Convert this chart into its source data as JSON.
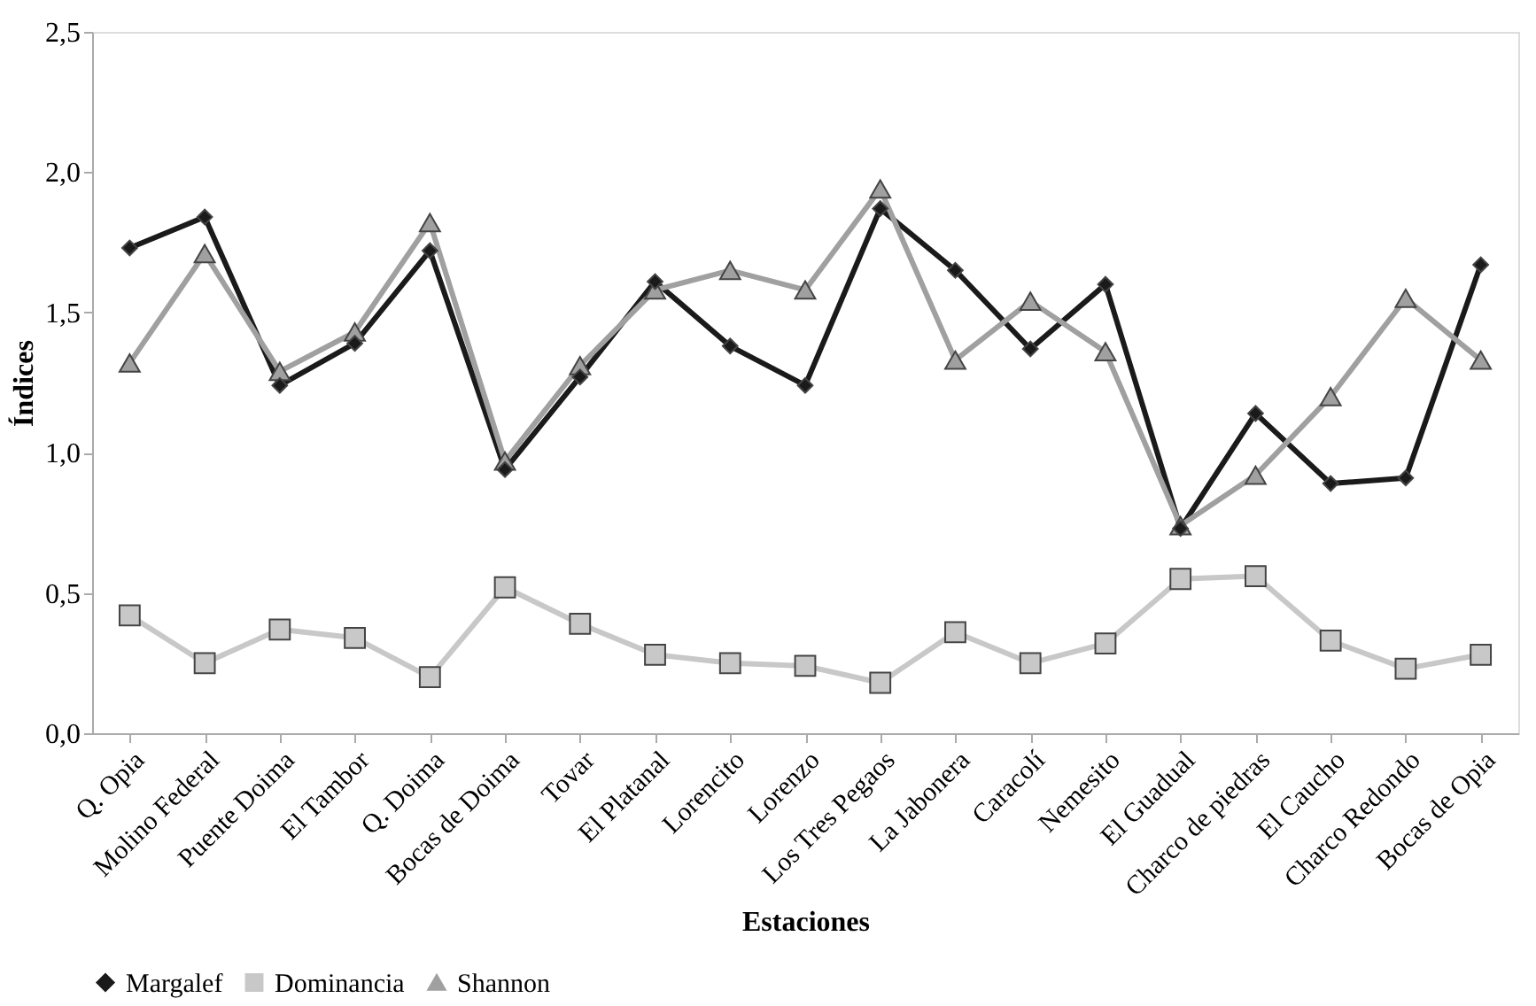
{
  "chart_data": {
    "type": "line",
    "xlabel": "Estaciones",
    "ylabel": "Índices",
    "categories": [
      "Q. Opia",
      "Molino Federal",
      "Puente Doima",
      "El Tambor",
      "Q. Doima",
      "Bocas de Doima",
      "Tovar",
      "El Platanal",
      "Lorencito",
      "Lorenzo",
      "Los Tres Pegaos",
      "La Jabonera",
      "Caracolí",
      "Nemesito",
      "El Guadual",
      "Charco de piedras",
      "El Caucho",
      "Charco Redondo",
      "Bocas de Opia"
    ],
    "series": [
      {
        "name": "Margalef",
        "color": "#1a1a1a",
        "marker": "diamond",
        "values": [
          1.73,
          1.84,
          1.24,
          1.39,
          1.72,
          0.94,
          1.27,
          1.61,
          1.38,
          1.24,
          1.87,
          1.65,
          1.37,
          1.6,
          0.73,
          1.14,
          0.89,
          0.91,
          1.67
        ]
      },
      {
        "name": "Dominancia",
        "color": "#c8c8c8",
        "marker": "square",
        "values": [
          0.42,
          0.25,
          0.37,
          0.34,
          0.2,
          0.52,
          0.39,
          0.28,
          0.25,
          0.24,
          0.18,
          0.36,
          0.25,
          0.32,
          0.55,
          0.56,
          0.33,
          0.23,
          0.28
        ]
      },
      {
        "name": "Shannon",
        "color": "#a0a0a0",
        "marker": "triangle",
        "values": [
          1.32,
          1.71,
          1.29,
          1.43,
          1.82,
          0.97,
          1.31,
          1.58,
          1.65,
          1.58,
          1.94,
          1.33,
          1.54,
          1.36,
          0.74,
          0.92,
          1.2,
          1.55,
          1.33
        ]
      }
    ],
    "ylim": [
      0,
      2.5
    ],
    "yticks": [
      {
        "value": 0,
        "label": "0,0"
      },
      {
        "value": 0.5,
        "label": "0,5"
      },
      {
        "value": 1,
        "label": "1,0"
      },
      {
        "value": 1.5,
        "label": "1,5"
      },
      {
        "value": 2,
        "label": "2,0"
      },
      {
        "value": 2.5,
        "label": "2,5"
      }
    ],
    "grid": false,
    "legend": "bottom",
    "line_style": "solid"
  }
}
